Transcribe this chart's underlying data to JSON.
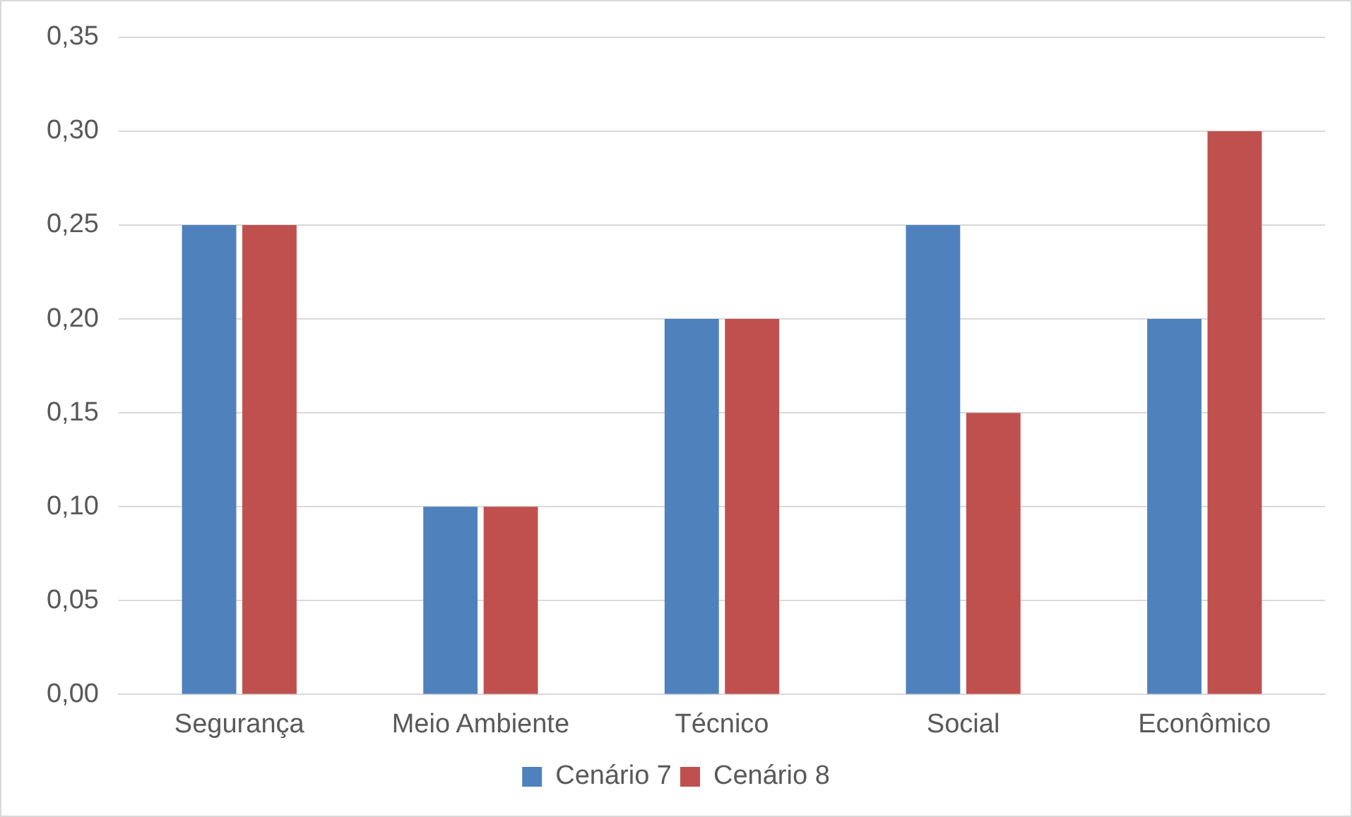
{
  "chart_data": {
    "type": "bar",
    "categories": [
      "Segurança",
      "Meio Ambiente",
      "Técnico",
      "Social",
      "Econômico"
    ],
    "series": [
      {
        "name": "Cenário 7",
        "color": "#4f81bd",
        "values": [
          0.25,
          0.1,
          0.2,
          0.25,
          0.2
        ]
      },
      {
        "name": "Cenário 8",
        "color": "#c0504d",
        "values": [
          0.25,
          0.1,
          0.2,
          0.15,
          0.3
        ]
      }
    ],
    "ylim": [
      0,
      0.35
    ],
    "yticks": [
      {
        "value": 0,
        "label": "0,00"
      },
      {
        "value": 0.05,
        "label": "0,05"
      },
      {
        "value": 0.1,
        "label": "0,10"
      },
      {
        "value": 0.15,
        "label": "0,15"
      },
      {
        "value": 0.2,
        "label": "0,20"
      },
      {
        "value": 0.25,
        "label": "0,25"
      },
      {
        "value": 0.3,
        "label": "0,30"
      },
      {
        "value": 0.35,
        "label": "0,35"
      }
    ],
    "grid": "y",
    "legend": "bottom"
  }
}
